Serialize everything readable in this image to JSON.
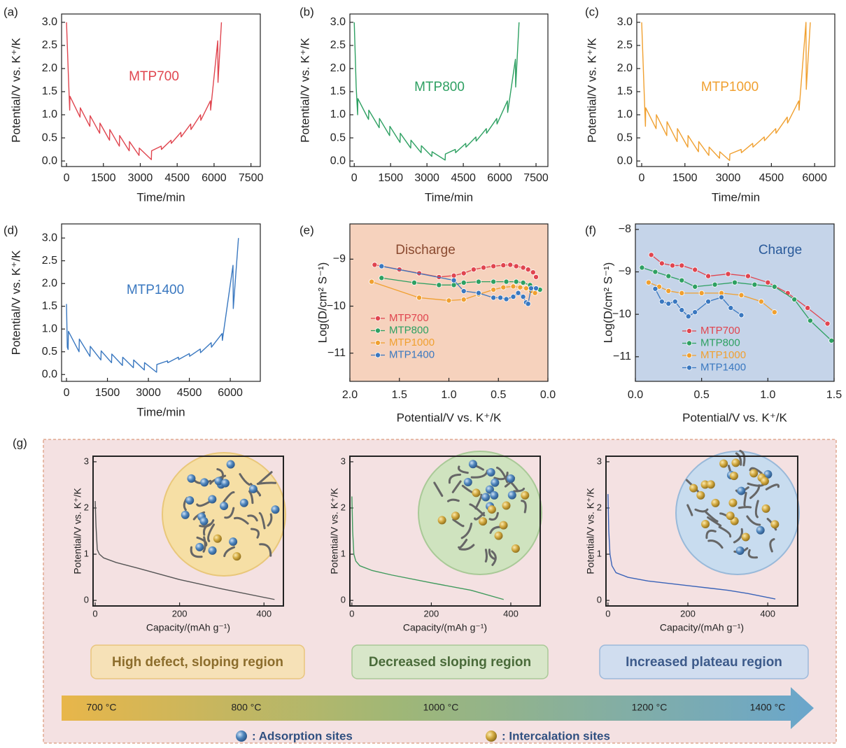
{
  "chart_data": [
    {
      "panel": "(a)",
      "type": "line",
      "annotation": "MTP700",
      "annotation_color": "#e0454f",
      "x_label": "Time/min",
      "y_label": "Potential/V vs. K⁺/K",
      "xlim": [
        -200,
        7880
      ],
      "ylim": [
        -0.12,
        3.18
      ],
      "xticks": [
        0,
        1500,
        3000,
        4500,
        6000,
        7500
      ],
      "yticks": [
        {
          "value": 0,
          "label": "0.0"
        },
        0.5,
        {
          "value": 1,
          "label": "1.0"
        },
        1.5,
        {
          "value": 2,
          "label": "2.0"
        },
        2.5,
        {
          "value": 3,
          "label": "3.0"
        }
      ],
      "series": [
        {
          "color": "#e0454f",
          "x": [
            0,
            80,
            130,
            140,
            550,
            560,
            950,
            960,
            1350,
            1360,
            1750,
            1760,
            2150,
            2160,
            2550,
            2560,
            2950,
            2960,
            3450,
            3460,
            3850,
            3860,
            4250,
            4260,
            4650,
            4660,
            5050,
            5060,
            5450,
            5460,
            5850,
            5860,
            6150,
            6160,
            6300
          ],
          "values": [
            3.0,
            1.8,
            1.1,
            1.4,
            0.95,
            1.15,
            0.75,
            0.98,
            0.6,
            0.82,
            0.45,
            0.68,
            0.32,
            0.55,
            0.22,
            0.42,
            0.12,
            0.28,
            0.03,
            0.22,
            0.32,
            0.25,
            0.45,
            0.38,
            0.62,
            0.52,
            0.8,
            0.68,
            1.0,
            0.88,
            1.3,
            1.1,
            2.6,
            1.7,
            3.0
          ]
        }
      ]
    },
    {
      "panel": "(b)",
      "type": "line",
      "annotation": "MTP800",
      "annotation_color": "#2ea062",
      "x_label": "Time/min",
      "y_label": "Potential/V vs. K⁺/K",
      "xlim": [
        -180,
        7990
      ],
      "ylim": [
        -0.12,
        3.18
      ],
      "xticks": [
        0,
        1500,
        3000,
        4500,
        6000,
        7500
      ],
      "yticks": [
        {
          "value": 0,
          "label": "0.0"
        },
        0.5,
        {
          "value": 1,
          "label": "1.0"
        },
        1.5,
        {
          "value": 2,
          "label": "2.0"
        },
        2.5,
        {
          "value": 3,
          "label": "3.0"
        }
      ],
      "series": [
        {
          "color": "#2ea062",
          "x": [
            0,
            80,
            140,
            150,
            590,
            600,
            1030,
            1040,
            1460,
            1470,
            1890,
            1900,
            2330,
            2340,
            2760,
            2770,
            3200,
            3210,
            3750,
            3760,
            4170,
            4180,
            4600,
            4610,
            5020,
            5030,
            5450,
            5460,
            5880,
            5890,
            6320,
            6330,
            6650,
            6660,
            6800
          ],
          "values": [
            3.0,
            1.6,
            1.0,
            1.35,
            0.9,
            1.1,
            0.72,
            0.92,
            0.55,
            0.75,
            0.4,
            0.6,
            0.28,
            0.45,
            0.18,
            0.33,
            0.1,
            0.2,
            0.02,
            0.15,
            0.25,
            0.18,
            0.38,
            0.3,
            0.52,
            0.43,
            0.7,
            0.6,
            0.92,
            0.8,
            1.3,
            1.05,
            2.2,
            1.6,
            3.0
          ]
        }
      ]
    },
    {
      "panel": "(c)",
      "type": "line",
      "annotation": "MTP1000",
      "annotation_color": "#f0a030",
      "x_label": "Time/min",
      "y_label": "Potential/V vs. K⁺/K",
      "xlim": [
        -170,
        6700
      ],
      "ylim": [
        -0.12,
        3.18
      ],
      "xticks": [
        0,
        1500,
        3000,
        4500,
        6000
      ],
      "yticks": [
        {
          "value": 0,
          "label": "0.0"
        },
        0.5,
        {
          "value": 1,
          "label": "1.0"
        },
        1.5,
        {
          "value": 2,
          "label": "2.0"
        },
        2.5,
        {
          "value": 3,
          "label": "3.0"
        }
      ],
      "series": [
        {
          "color": "#f0a030",
          "x": [
            0,
            80,
            130,
            140,
            500,
            510,
            870,
            880,
            1230,
            1240,
            1600,
            1610,
            1970,
            1980,
            2330,
            2340,
            2700,
            2710,
            3050,
            3060,
            3450,
            3460,
            3850,
            3860,
            4250,
            4260,
            4650,
            4660,
            5050,
            5060,
            5450,
            5460,
            5700,
            5710,
            5850
          ],
          "values": [
            3.0,
            1.6,
            0.75,
            1.15,
            0.7,
            1.0,
            0.55,
            0.85,
            0.42,
            0.7,
            0.3,
            0.55,
            0.2,
            0.42,
            0.12,
            0.3,
            0.06,
            0.2,
            0.01,
            0.15,
            0.25,
            0.18,
            0.38,
            0.3,
            0.52,
            0.44,
            0.7,
            0.6,
            0.95,
            0.82,
            1.3,
            1.1,
            3.0,
            1.55,
            3.0
          ]
        }
      ]
    },
    {
      "panel": "(d)",
      "type": "line",
      "annotation": "MTP1400",
      "annotation_color": "#3a78c0",
      "x_label": "Time/min",
      "y_label": "Potential/V vs. K⁺/K",
      "xlim": [
        -180,
        7100
      ],
      "ylim": [
        -0.15,
        3.31
      ],
      "xticks": [
        0,
        1500,
        3000,
        4500,
        6000
      ],
      "yticks": [
        {
          "value": 0,
          "label": "0.0"
        },
        0.5,
        {
          "value": 1,
          "label": "1.0"
        },
        1.5,
        {
          "value": 2,
          "label": "2.0"
        },
        2.5,
        {
          "value": 3,
          "label": "3.0"
        }
      ],
      "series": [
        {
          "color": "#3a78c0",
          "x": [
            0,
            30,
            60,
            70,
            460,
            470,
            860,
            870,
            1260,
            1270,
            1650,
            1660,
            2050,
            2060,
            2450,
            2460,
            2850,
            2860,
            3300,
            3310,
            3700,
            3710,
            4100,
            4110,
            4500,
            4510,
            4900,
            4910,
            5300,
            5310,
            5700,
            5710,
            6100,
            6110,
            6300
          ],
          "values": [
            1.55,
            0.6,
            0.55,
            0.95,
            0.5,
            0.78,
            0.4,
            0.62,
            0.32,
            0.52,
            0.26,
            0.45,
            0.2,
            0.38,
            0.15,
            0.32,
            0.1,
            0.26,
            0.05,
            0.22,
            0.3,
            0.26,
            0.38,
            0.33,
            0.46,
            0.4,
            0.56,
            0.48,
            0.7,
            0.6,
            0.9,
            0.75,
            2.4,
            1.45,
            3.0
          ]
        }
      ]
    },
    {
      "panel": "(e)",
      "type": "line",
      "markers": true,
      "background": "#f6d2bd",
      "annotation": "Discharge",
      "annotation_color": "#8a4a30",
      "x_label": "Potential/V vs. K⁺/K",
      "y_label": "Log(D/cm² S⁻¹)",
      "xlim": [
        2.0,
        0.0
      ],
      "ylim": [
        -11.6,
        -8.25
      ],
      "xticks": [
        {
          "value": 2,
          "label": "2.0"
        },
        1.5,
        {
          "value": 1,
          "label": "1.0"
        },
        0.5,
        {
          "value": 0,
          "label": "0.0"
        }
      ],
      "yticks": [
        {
          "value": -9,
          "label": "−9"
        },
        {
          "value": -10,
          "label": "−10"
        },
        {
          "value": -11,
          "label": "−11"
        }
      ],
      "legend": "center left",
      "series": [
        {
          "name": "MTP700",
          "color": "#e0454f",
          "x": [
            1.75,
            1.5,
            1.3,
            1.1,
            0.95,
            0.85,
            0.75,
            0.65,
            0.55,
            0.45,
            0.38,
            0.32,
            0.25,
            0.2,
            0.15,
            0.12
          ],
          "values": [
            -9.12,
            -9.22,
            -9.3,
            -9.38,
            -9.35,
            -9.3,
            -9.22,
            -9.18,
            -9.15,
            -9.13,
            -9.12,
            -9.15,
            -9.18,
            -9.22,
            -9.28,
            -9.38
          ]
        },
        {
          "name": "MTP800",
          "color": "#2ea062",
          "x": [
            1.68,
            1.35,
            1.1,
            0.95,
            0.85,
            0.7,
            0.55,
            0.42,
            0.32,
            0.25,
            0.18,
            0.12,
            0.08
          ],
          "values": [
            -9.4,
            -9.5,
            -9.55,
            -9.55,
            -9.5,
            -9.48,
            -9.48,
            -9.48,
            -9.48,
            -9.5,
            -9.55,
            -9.62,
            -9.65
          ]
        },
        {
          "name": "MTP1000",
          "color": "#f0a030",
          "x": [
            1.78,
            1.3,
            1.0,
            0.85,
            0.7,
            0.55,
            0.45,
            0.35,
            0.28,
            0.22,
            0.17,
            0.13
          ],
          "values": [
            -9.48,
            -9.82,
            -9.88,
            -9.86,
            -9.75,
            -9.65,
            -9.6,
            -9.58,
            -9.6,
            -9.62,
            -9.68,
            -9.72
          ]
        },
        {
          "name": "MTP1400",
          "color": "#3a78c0",
          "x": [
            1.68,
            0.95,
            0.85,
            0.7,
            0.55,
            0.48,
            0.42,
            0.35,
            0.3,
            0.25,
            0.22,
            0.2,
            0.17,
            0.12
          ],
          "values": [
            -9.15,
            -9.45,
            -9.68,
            -9.72,
            -9.82,
            -9.82,
            -9.85,
            -9.8,
            -9.72,
            -9.8,
            -9.92,
            -9.95,
            -9.62,
            -9.62
          ]
        }
      ]
    },
    {
      "panel": "(f)",
      "type": "line",
      "markers": true,
      "background": "#c5d4e9",
      "annotation": "Charge",
      "annotation_color": "#2a5a9a",
      "x_label": "Potential/V vs. K⁺/K",
      "y_label": "Log(D/cm² S⁻¹)",
      "xlim": [
        0,
        1.5
      ],
      "ylim": [
        -11.58,
        -7.87
      ],
      "xticks": [
        {
          "value": 0,
          "label": "0.0"
        },
        0.5,
        {
          "value": 1,
          "label": "1.0"
        },
        1.5
      ],
      "yticks": [
        {
          "value": -8,
          "label": "−8"
        },
        {
          "value": -9,
          "label": "−9"
        },
        {
          "value": -10,
          "label": "−10"
        },
        {
          "value": -11,
          "label": "−11"
        }
      ],
      "legend": "center",
      "series": [
        {
          "name": "MTP700",
          "color": "#e0454f",
          "x": [
            0.12,
            0.2,
            0.28,
            0.35,
            0.45,
            0.55,
            0.7,
            0.85,
            1.0,
            1.15,
            1.3,
            1.45
          ],
          "values": [
            -8.6,
            -8.8,
            -8.85,
            -8.85,
            -8.95,
            -9.1,
            -9.05,
            -9.1,
            -9.25,
            -9.5,
            -9.85,
            -10.22
          ]
        },
        {
          "name": "MTP800",
          "color": "#2ea062",
          "x": [
            0.05,
            0.15,
            0.25,
            0.35,
            0.45,
            0.6,
            0.75,
            0.9,
            1.05,
            1.2,
            1.32,
            1.48
          ],
          "values": [
            -8.9,
            -9.0,
            -9.1,
            -9.2,
            -9.35,
            -9.3,
            -9.25,
            -9.3,
            -9.35,
            -9.65,
            -10.15,
            -10.62
          ]
        },
        {
          "name": "MTP1000",
          "color": "#f0a030",
          "x": [
            0.1,
            0.18,
            0.25,
            0.35,
            0.5,
            0.65,
            0.8,
            0.95,
            1.05
          ],
          "values": [
            -9.25,
            -9.35,
            -9.45,
            -9.5,
            -9.5,
            -9.5,
            -9.55,
            -9.7,
            -9.95
          ]
        },
        {
          "name": "MTP1400",
          "color": "#3a78c0",
          "x": [
            0.15,
            0.2,
            0.25,
            0.3,
            0.35,
            0.4,
            0.45,
            0.55,
            0.65,
            0.72,
            0.8
          ],
          "values": [
            -9.4,
            -9.7,
            -9.75,
            -9.7,
            -9.9,
            -10.05,
            -9.95,
            -9.7,
            -9.6,
            -9.85,
            -10.02
          ]
        }
      ]
    },
    {
      "type": "line",
      "x_label": "Capacity/(mAh g⁻¹)",
      "y_label": "Potential/V vs. K⁺/K",
      "xlim": [
        -5,
        446
      ],
      "ylim": [
        -0.12,
        3.12
      ],
      "xticks": [
        0,
        200,
        400
      ],
      "yticks": [
        0,
        1,
        2,
        3
      ],
      "series": [
        {
          "color": "#555555",
          "x": [
            0,
            2,
            5,
            10,
            20,
            50,
            100,
            200,
            300,
            425
          ],
          "values": [
            2.15,
            1.6,
            1.1,
            1.0,
            0.92,
            0.82,
            0.7,
            0.45,
            0.25,
            0.02
          ]
        }
      ]
    },
    {
      "type": "line",
      "x_label": "Capacity/(mAh g⁻¹)",
      "y_label": "Potential/V vs. K⁺/K",
      "xlim": [
        -5,
        474
      ],
      "ylim": [
        -0.12,
        3.12
      ],
      "xticks": [
        0,
        200,
        400
      ],
      "yticks": [
        0,
        1,
        2,
        3
      ],
      "series": [
        {
          "color": "#3f9a5c",
          "x": [
            0,
            2,
            5,
            10,
            20,
            50,
            100,
            200,
            300,
            382
          ],
          "values": [
            2.25,
            1.5,
            1.0,
            0.85,
            0.75,
            0.65,
            0.55,
            0.38,
            0.22,
            0.02
          ]
        }
      ]
    },
    {
      "type": "line",
      "x_label": "Capacity/(mAh g⁻¹)",
      "y_label": "Potential/V vs. K⁺/K",
      "xlim": [
        -5,
        475
      ],
      "ylim": [
        -0.12,
        3.12
      ],
      "xticks": [
        0,
        200,
        400
      ],
      "yticks": [
        0,
        1,
        2,
        3
      ],
      "series": [
        {
          "color": "#3a63b8",
          "x": [
            0,
            2,
            5,
            10,
            20,
            50,
            100,
            200,
            300,
            350,
            419
          ],
          "values": [
            2.3,
            1.5,
            1.0,
            0.75,
            0.6,
            0.5,
            0.42,
            0.32,
            0.22,
            0.15,
            0.03
          ]
        }
      ]
    }
  ],
  "panel_g": {
    "label": "(g)",
    "regions": [
      "High defect, sloping region",
      "Decreased sloping region",
      "Increased plateau region"
    ],
    "temperatures": [
      "700 °C",
      "800 °C",
      "1000 °C",
      "1200 °C",
      "1400 °C"
    ],
    "legend": [
      ": Adsorption sites",
      ": Intercalation sites"
    ]
  }
}
